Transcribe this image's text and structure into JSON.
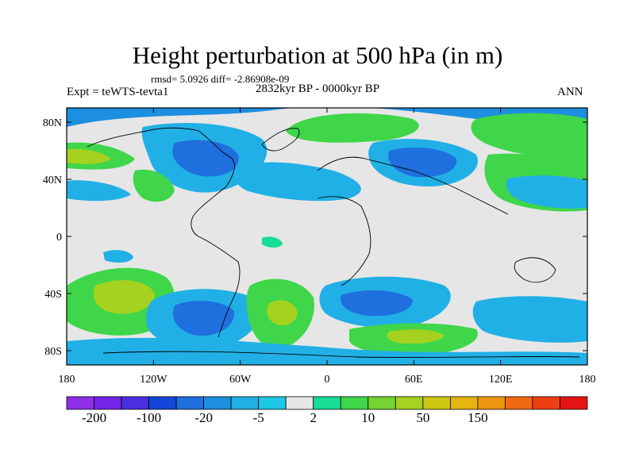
{
  "title": "Height perturbation at 500 hPa (in m)",
  "stats": "rmsd= 5.0926 diff= -2.86908e-09",
  "experiment": "Expt = teWTS-tevta1",
  "period": "2832kyr BP - 0000kyr BP",
  "season": "ANN",
  "map": {
    "lat_labels": [
      "80N",
      "40N",
      "0",
      "40S",
      "80S"
    ],
    "lat_values": [
      80,
      40,
      0,
      -40,
      -80
    ],
    "lon_labels": [
      "180",
      "120W",
      "60W",
      "0",
      "60E",
      "120E",
      "180"
    ],
    "lon_values": [
      -180,
      -120,
      -60,
      0,
      60,
      120,
      180
    ],
    "lat_range": [
      -90,
      90
    ],
    "lon_range": [
      -180,
      180
    ]
  },
  "colorbar": {
    "labels": [
      "-200",
      "-100",
      "-20",
      "-5",
      "2",
      "10",
      "50",
      "150"
    ],
    "colors": [
      "#8f2ee8",
      "#7324e6",
      "#4a2fe0",
      "#1446d8",
      "#1f6fde",
      "#1d8fe0",
      "#21b0e6",
      "#1cc8e3",
      "#e6e6e6",
      "#19dd96",
      "#3fd64a",
      "#74d330",
      "#a5d21f",
      "#cdc714",
      "#e6b411",
      "#ee9511",
      "#ef6a13",
      "#ee3e12",
      "#e51414"
    ]
  },
  "colors": {
    "neutral": "#e6e6e6",
    "coast": "#000000"
  }
}
